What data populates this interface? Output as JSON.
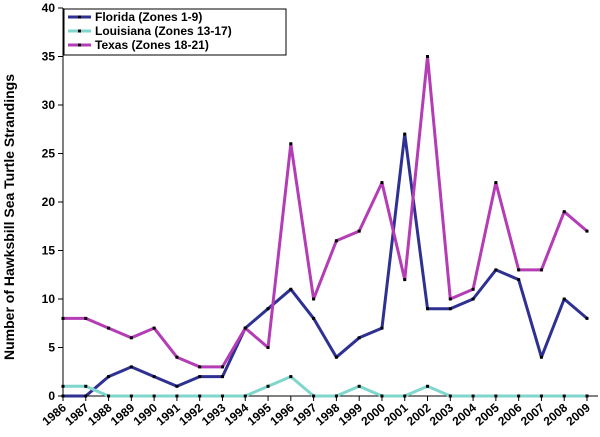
{
  "chart_data": {
    "type": "line",
    "ylabel": "Number of Hawksbill Sea Turtle Strandings",
    "xlabel": "",
    "title": "",
    "ylim": [
      0,
      40
    ],
    "yticks": [
      0,
      5,
      10,
      15,
      20,
      25,
      30,
      35,
      40
    ],
    "x": [
      "1986",
      "1987",
      "1988",
      "1989",
      "1990",
      "1991",
      "1992",
      "1993",
      "1994",
      "1995",
      "1996",
      "1997",
      "1998",
      "1999",
      "2000",
      "2001",
      "2002",
      "2003",
      "2004",
      "2005",
      "2006",
      "2007",
      "2008",
      "2009"
    ],
    "grid": false,
    "legend_position": "top-left",
    "series": [
      {
        "name": "Florida (Zones 1-9)",
        "color": "#2e3192",
        "values": [
          0,
          0,
          2,
          3,
          2,
          1,
          2,
          2,
          7,
          9,
          11,
          8,
          4,
          6,
          7,
          27,
          9,
          9,
          10,
          13,
          12,
          4,
          10,
          8
        ]
      },
      {
        "name": "Louisiana (Zones 13-17)",
        "color": "#7fd6cc",
        "values": [
          1,
          1,
          0,
          0,
          0,
          0,
          0,
          0,
          0,
          1,
          2,
          0,
          0,
          1,
          0,
          0,
          1,
          0,
          0,
          0,
          0,
          0,
          0,
          0
        ]
      },
      {
        "name": "Texas (Zones 18-21)",
        "color": "#b43cb4",
        "values": [
          8,
          8,
          7,
          6,
          7,
          4,
          3,
          3,
          7,
          5,
          26,
          10,
          16,
          17,
          22,
          12,
          35,
          10,
          11,
          22,
          13,
          13,
          19,
          17
        ]
      }
    ]
  }
}
